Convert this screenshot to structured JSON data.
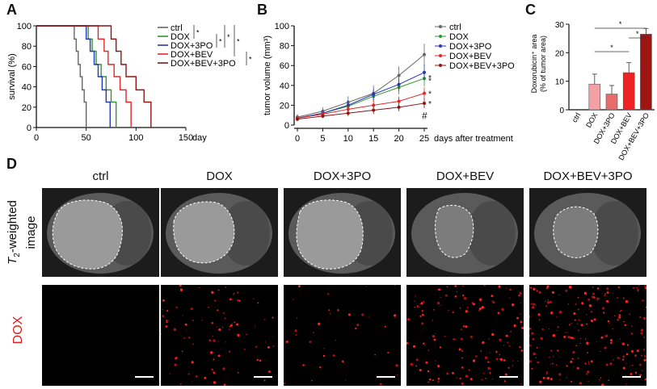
{
  "panels": {
    "a": "A",
    "b": "B",
    "c": "C",
    "d": "D"
  },
  "colors": {
    "ctrl": "#666666",
    "dox": "#2e9a2e",
    "dox3po": "#2438b8",
    "doxbev": "#e0282a",
    "doxbev3po": "#8b1414",
    "bar_dox": "#f3a1a4",
    "bar_dox3po": "#e86b6b",
    "bar_doxbev": "#ee2222",
    "bar_doxbev3po": "#a01414"
  },
  "chart_data": [
    {
      "type": "line",
      "panel": "A",
      "title": "",
      "ylabel": "survival (%)",
      "xlabel": "day",
      "xlim": [
        0,
        150
      ],
      "ylim": [
        0,
        100
      ],
      "xticks": [
        "0",
        "50",
        "100",
        "150"
      ],
      "yticks": [
        "0",
        "20",
        "40",
        "60",
        "80",
        "100"
      ],
      "legend": [
        "ctrl",
        "DOX",
        "DOX+3PO",
        "DOX+BEV",
        "DOX+BEV+3PO"
      ],
      "significance_marks": [
        "*",
        "*",
        "*",
        "*",
        "*"
      ],
      "series": [
        {
          "name": "ctrl",
          "x": [
            0,
            38,
            38,
            40,
            40,
            42,
            42,
            44,
            44,
            46,
            46,
            48,
            48,
            50,
            50
          ],
          "y": [
            100,
            100,
            87,
            87,
            75,
            75,
            62,
            62,
            50,
            50,
            37,
            37,
            25,
            25,
            0
          ]
        },
        {
          "name": "DOX",
          "x": [
            0,
            52,
            52,
            56,
            56,
            60,
            60,
            65,
            65,
            70,
            70,
            75,
            75,
            80,
            80
          ],
          "y": [
            100,
            100,
            87,
            87,
            75,
            75,
            62,
            62,
            50,
            50,
            37,
            37,
            25,
            25,
            0
          ]
        },
        {
          "name": "DOX+3PO",
          "x": [
            0,
            50,
            50,
            54,
            54,
            58,
            58,
            62,
            62,
            66,
            66,
            70,
            70,
            74,
            74
          ],
          "y": [
            100,
            100,
            87,
            87,
            75,
            75,
            62,
            62,
            50,
            50,
            37,
            37,
            25,
            25,
            0
          ]
        },
        {
          "name": "DOX+BEV",
          "x": [
            0,
            62,
            62,
            68,
            68,
            72,
            72,
            78,
            78,
            84,
            84,
            90,
            90,
            95,
            95
          ],
          "y": [
            100,
            100,
            87,
            87,
            75,
            75,
            62,
            62,
            50,
            50,
            37,
            37,
            25,
            25,
            0
          ]
        },
        {
          "name": "DOX+BEV+3PO",
          "x": [
            0,
            75,
            75,
            80,
            80,
            85,
            85,
            90,
            90,
            100,
            100,
            108,
            108,
            115,
            115
          ],
          "y": [
            100,
            100,
            87,
            87,
            75,
            75,
            62,
            62,
            50,
            50,
            37,
            37,
            25,
            25,
            0
          ]
        }
      ]
    },
    {
      "type": "line",
      "panel": "B",
      "ylabel": "tumor volume (mm³)",
      "xlabel": "days after treatment",
      "xlim": [
        0,
        25
      ],
      "ylim": [
        0,
        100
      ],
      "xticks": [
        "0",
        "5",
        "10",
        "15",
        "20",
        "25"
      ],
      "yticks": [
        "0",
        "20",
        "40",
        "60",
        "80",
        "100"
      ],
      "legend": [
        "ctrl",
        "DOX",
        "DOX+3PO",
        "DOX+BEV",
        "DOX+BEV+3PO"
      ],
      "annotations": [
        "*",
        "*",
        "*",
        "*",
        "#"
      ],
      "x": [
        0,
        5,
        10,
        15,
        20,
        25
      ],
      "series": [
        {
          "name": "ctrl",
          "values": [
            8,
            14,
            23,
            32,
            50,
            71
          ],
          "err": [
            3,
            4,
            6,
            8,
            9,
            11
          ]
        },
        {
          "name": "DOX",
          "values": [
            7,
            12,
            19,
            29,
            38,
            47
          ],
          "err": [
            3,
            3,
            5,
            6,
            7,
            8
          ]
        },
        {
          "name": "DOX+3PO",
          "values": [
            7,
            12,
            20,
            31,
            41,
            53
          ],
          "err": [
            3,
            3,
            5,
            6,
            7,
            8
          ]
        },
        {
          "name": "DOX+BEV",
          "values": [
            7,
            11,
            16,
            20,
            24,
            32
          ],
          "err": [
            2,
            3,
            4,
            5,
            5,
            6
          ]
        },
        {
          "name": "DOX+BEV+3PO",
          "values": [
            6,
            9,
            12,
            15,
            18,
            22
          ],
          "err": [
            2,
            2,
            3,
            4,
            4,
            5
          ]
        }
      ]
    },
    {
      "type": "bar",
      "panel": "C",
      "ylabel": "Doxorubicin⁺ area (% of tumor area)",
      "ylabel_line1": "Doxorubicin⁺ area",
      "ylabel_line2": "(% of tumor area)",
      "ylim": [
        0,
        30
      ],
      "yticks": [
        "0",
        "10",
        "20",
        "30"
      ],
      "categories": [
        "ctrl",
        "DOX",
        "DOX+3PO",
        "DOX+BEV",
        "DOX+BEV+3PO"
      ],
      "values": [
        0,
        9,
        5.5,
        13,
        26.5
      ],
      "err": [
        0,
        3.5,
        3,
        3.5,
        2
      ],
      "significance_marks": [
        "*",
        "*",
        "*"
      ]
    }
  ],
  "panel_d": {
    "columns": [
      "ctrl",
      "DOX",
      "DOX+3PO",
      "DOX+BEV",
      "DOX+BEV+3PO"
    ],
    "row1_label_pre": "T",
    "row1_label_sub": "2",
    "row1_label_post": "-weighted",
    "row1_label_line2": "image",
    "row2_label": "DOX",
    "dox_density": [
      0,
      0.35,
      0.15,
      0.55,
      0.8
    ]
  }
}
